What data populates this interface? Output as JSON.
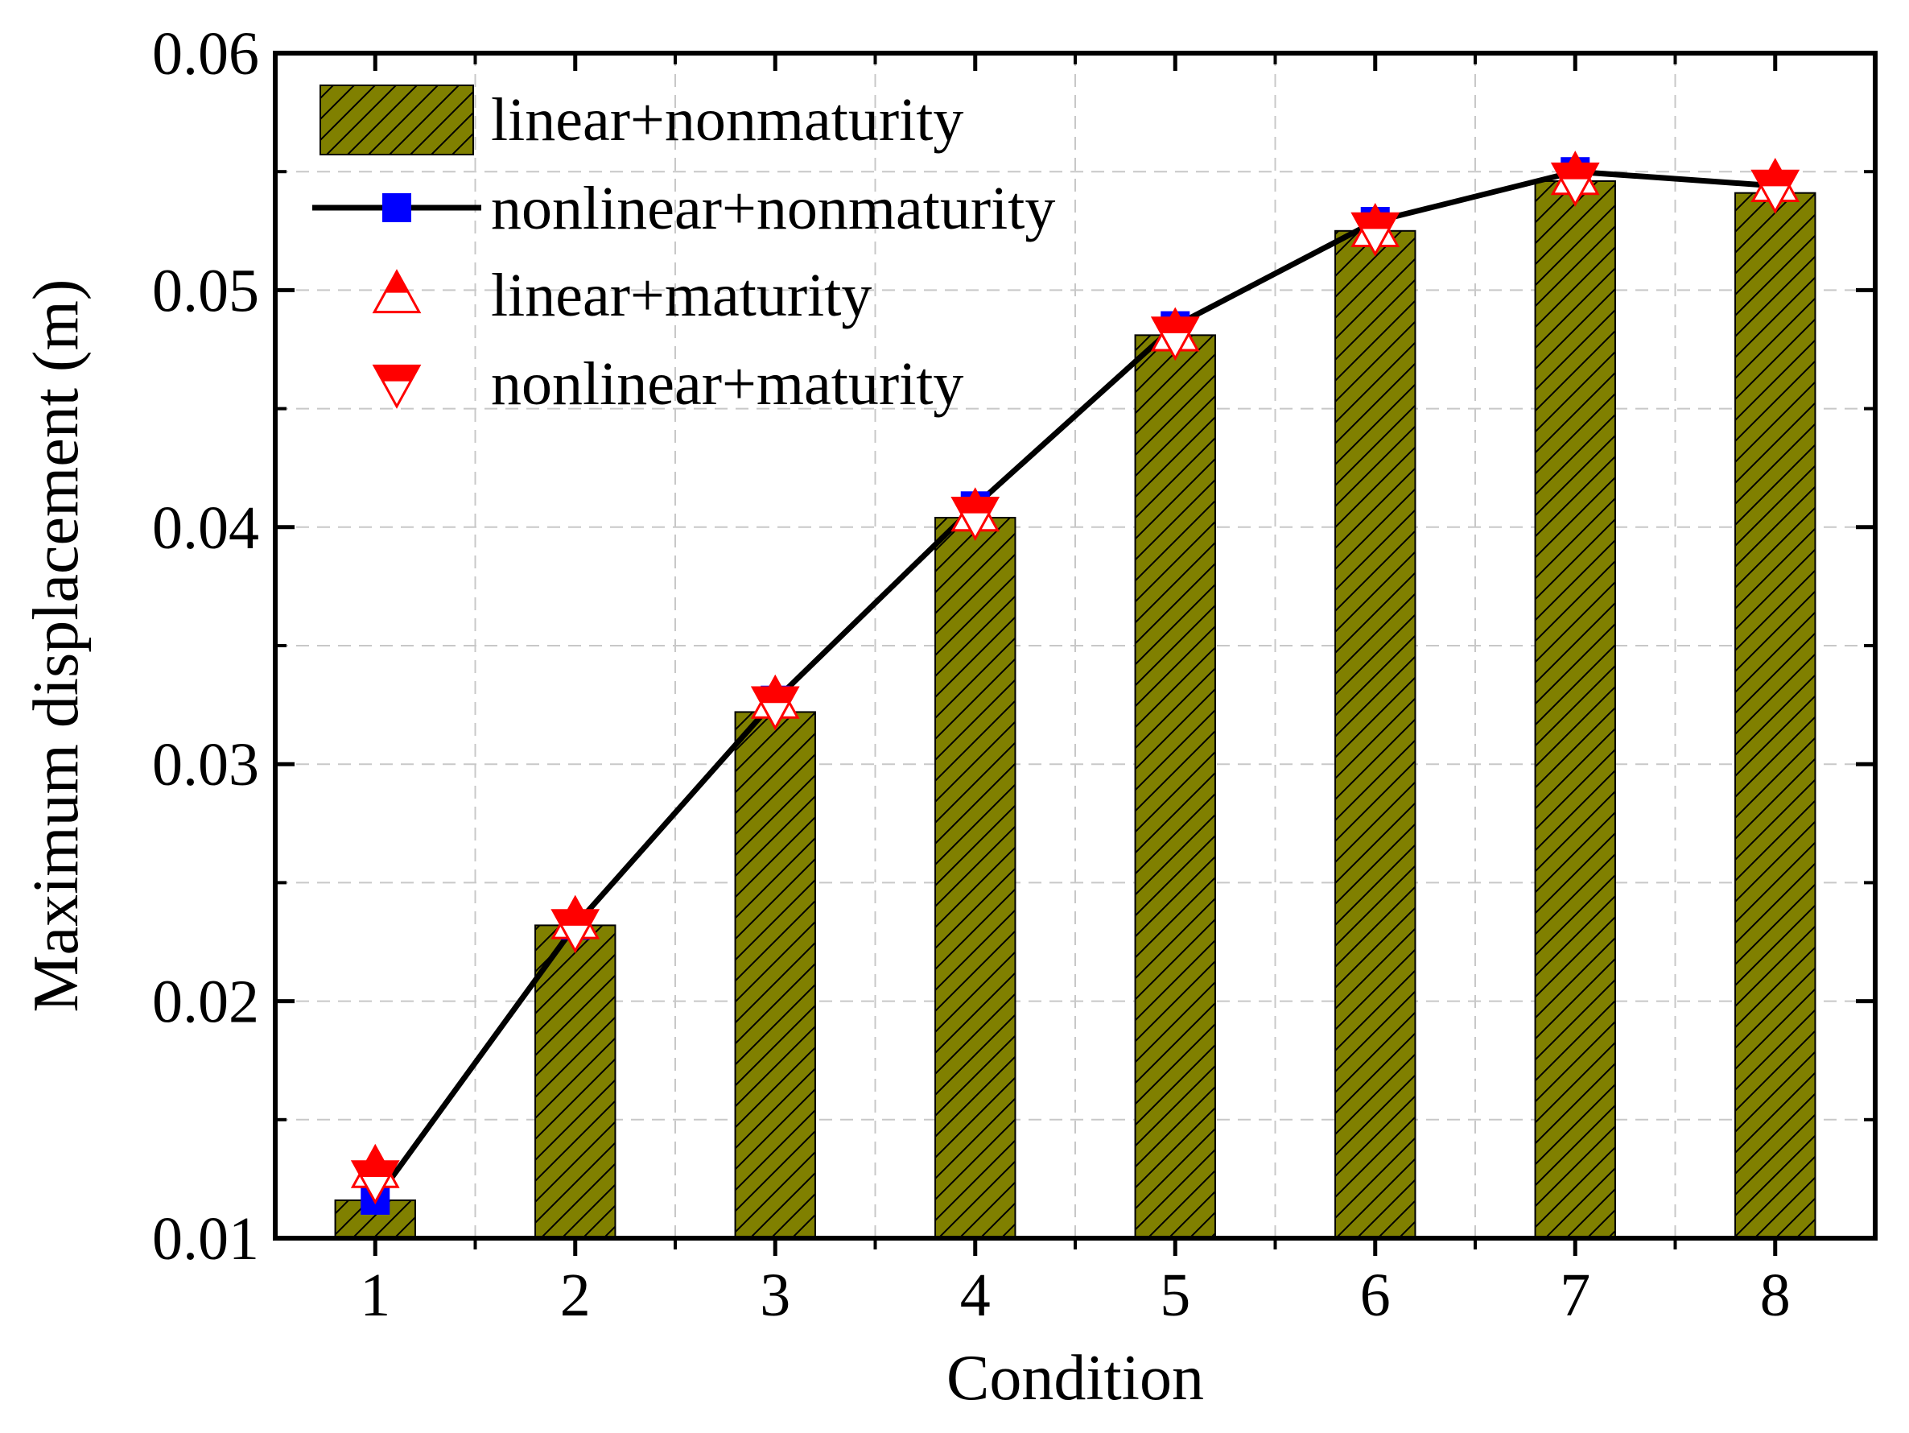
{
  "chart_data": {
    "type": "bar",
    "title": "",
    "xlabel": "Condition",
    "ylabel": "Maximum displacement (m)",
    "ylim": [
      0.01,
      0.06
    ],
    "yticks": [
      "0.01",
      "0.02",
      "0.03",
      "0.04",
      "0.05",
      "0.06"
    ],
    "categories": [
      "1",
      "2",
      "3",
      "4",
      "5",
      "6",
      "7",
      "8"
    ],
    "grid": true,
    "legend_position": "top-left",
    "series": [
      {
        "name": "linear+nonmaturity",
        "kind": "bar",
        "color": "#808000",
        "values": [
          0.0116,
          0.0232,
          0.0322,
          0.0404,
          0.0481,
          0.0525,
          0.0546,
          0.0541
        ]
      },
      {
        "name": "nonlinear+nonmaturity",
        "kind": "line",
        "color": "#0000ff",
        "line_color": "#000000",
        "marker": "square",
        "values": [
          0.0116,
          0.0232,
          0.0327,
          0.0409,
          0.0485,
          0.0529,
          0.055,
          0.0544
        ]
      },
      {
        "name": "linear+maturity",
        "kind": "scatter",
        "color": "#ff0000",
        "marker": "triangle-up",
        "values": [
          0.0129,
          0.0234,
          0.0327,
          0.0406,
          0.0482,
          0.0526,
          0.0548,
          0.0545
        ]
      },
      {
        "name": "nonlinear+maturity",
        "kind": "scatter",
        "color": "#ff0000",
        "marker": "triangle-down",
        "values": [
          0.0125,
          0.0231,
          0.0325,
          0.0405,
          0.0481,
          0.0525,
          0.0546,
          0.0543
        ]
      }
    ]
  }
}
